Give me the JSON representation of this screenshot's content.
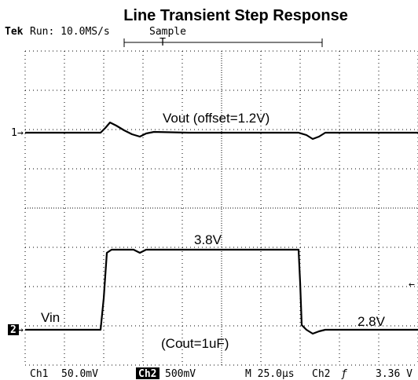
{
  "title": "Line Transient Step Response",
  "header": {
    "brand": "Tek",
    "status": "Run: 10.0MS/s",
    "mode": "Sample",
    "trigger_marker": "T"
  },
  "markers": {
    "ch1": "1",
    "ch2": "2"
  },
  "annotations": {
    "vout": "Vout (offset=1.2V)",
    "high": "3.8V",
    "vin": "Vin",
    "low": "2.8V",
    "cout": "(Cout=1uF)"
  },
  "footer": {
    "ch1": "Ch1",
    "ch1_scale": "50.0mV",
    "ch2": "Ch2",
    "ch2_scale": "500mV",
    "timebase": "M 25.0μs",
    "trigger_source": "Ch2",
    "trigger_slope": "ƒ",
    "trigger_level": "3.36 V"
  }
}
